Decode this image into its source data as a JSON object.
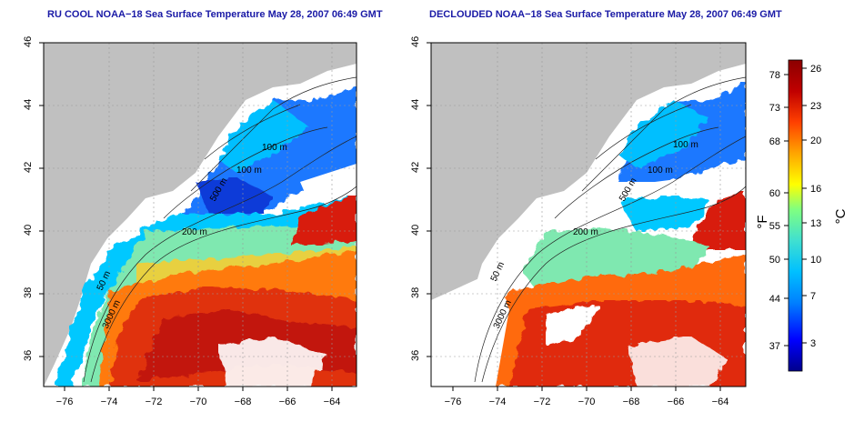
{
  "titles": {
    "left": "RU COOL NOAA−18 Sea Surface Temperature May 28, 2007 06:49 GMT",
    "right": "DECLOUDED NOAA−18 Sea Surface Temperature May 28, 2007 06:49 GMT"
  },
  "axes": {
    "lon_ticks": [
      "−76",
      "−74",
      "−72",
      "−70",
      "−68",
      "−66",
      "−64"
    ],
    "lat_ticks": [
      "46",
      "44",
      "42",
      "40",
      "38",
      "36"
    ],
    "lon_range": [
      -77,
      -63
    ],
    "lat_range": [
      35,
      46
    ]
  },
  "contours": {
    "left": [
      "100 m",
      "100 m",
      "500 m",
      "200 m",
      "50 m",
      "3000 m"
    ],
    "right": [
      "100 m",
      "100 m",
      "500 m",
      "200 m",
      "50 m",
      "3000 m"
    ]
  },
  "colorbar": {
    "fahrenheit_ticks": [
      "78",
      "73",
      "68",
      "60",
      "55",
      "50",
      "44",
      "37"
    ],
    "celsius_ticks": [
      "26",
      "23",
      "20",
      "16",
      "13",
      "10",
      "7",
      "3"
    ],
    "fahrenheit_label": "°F",
    "celsius_label": "°C",
    "colors": [
      "#00008b",
      "#0000ff",
      "#0080ff",
      "#00c0ff",
      "#40e0d0",
      "#80ff80",
      "#ffff00",
      "#ffa500",
      "#ff4000",
      "#c00000",
      "#8b0000"
    ]
  },
  "map_colors": {
    "land": "#c0c0c0",
    "cloud": "#ffffff",
    "cold": "#1e90ff",
    "cool": "#00bfff",
    "mid": "#7fffd4",
    "warm": "#ff8c00",
    "hot": "#e03010",
    "hottest": "#b01010"
  }
}
